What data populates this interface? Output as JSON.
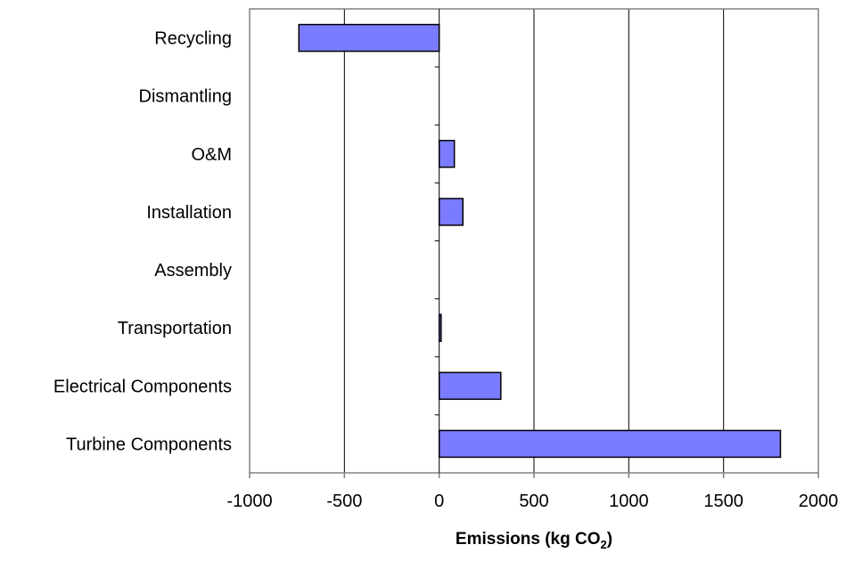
{
  "colors": {
    "bar_fill": "#7b7bff",
    "bar_stroke": "#000000",
    "frame": "#808080",
    "grid": "#000000",
    "background": "#ffffff"
  },
  "chart_data": {
    "type": "bar",
    "orientation": "horizontal",
    "categories": [
      "Turbine Components",
      "Electrical Components",
      "Transportation",
      "Assembly",
      "Installation",
      "O&M",
      "Dismantling",
      "Recycling"
    ],
    "values": [
      1800,
      325,
      10,
      0,
      125,
      80,
      0,
      -740
    ],
    "xlim": [
      -1000,
      2000
    ],
    "xticks": [
      -1000,
      -500,
      0,
      500,
      1000,
      1500,
      2000
    ],
    "xtick_labels": [
      "-1000",
      "-500",
      "0",
      "500",
      "1000",
      "1500",
      "2000"
    ],
    "xlabel": "Emissions (kg CO",
    "xlabel_subscript": "2",
    "xlabel_suffix": ")",
    "ylabel": "",
    "title": "",
    "grid": "vertical",
    "legend": "none"
  }
}
